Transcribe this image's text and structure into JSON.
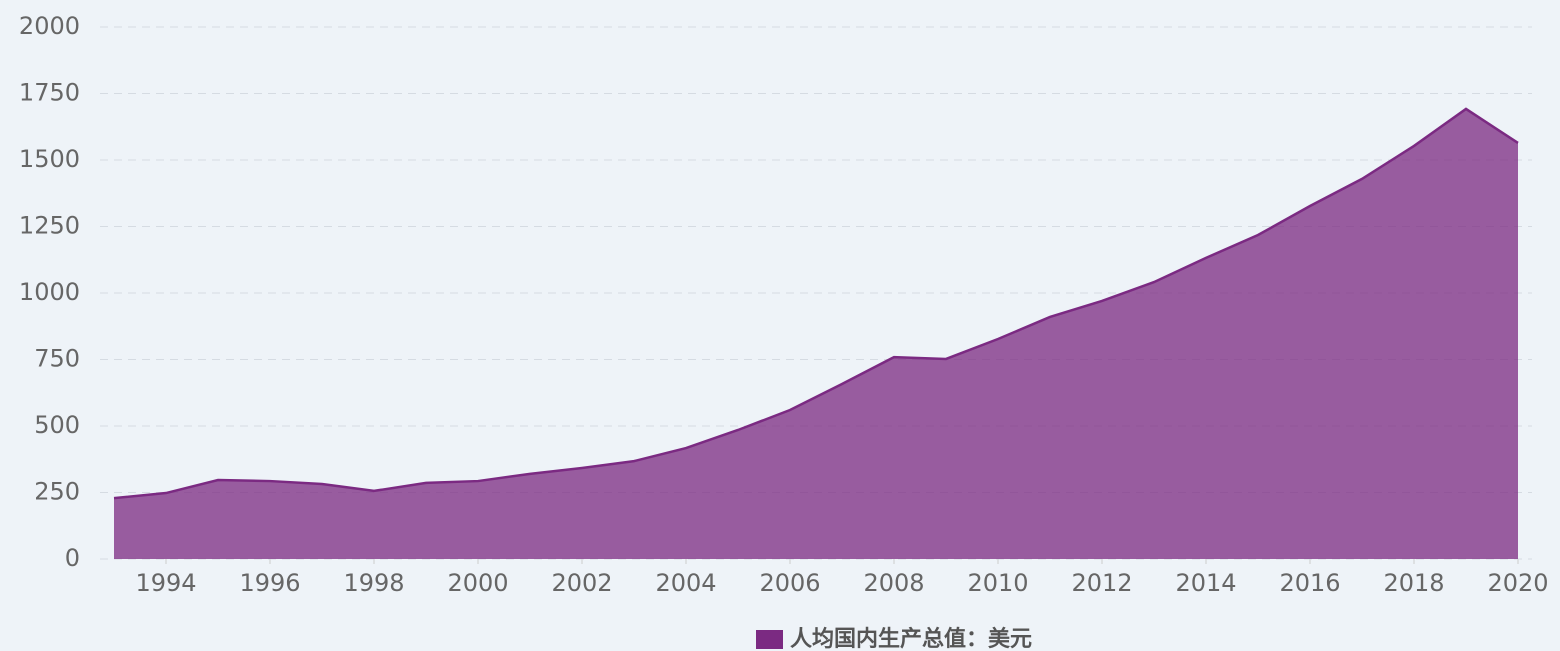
{
  "chart_data": {
    "type": "area",
    "legend_label": "人均国内生产总值：美元",
    "series": [
      {
        "name": "人均国内生产总值：美元",
        "color": "#7b2a82",
        "x": [
          1993,
          1994,
          1995,
          1996,
          1997,
          1998,
          1999,
          2000,
          2001,
          2002,
          2003,
          2004,
          2005,
          2006,
          2007,
          2008,
          2009,
          2010,
          2011,
          2012,
          2013,
          2014,
          2015,
          2016,
          2017,
          2018,
          2019,
          2020
        ],
        "values": [
          229,
          248,
          297,
          293,
          282,
          256,
          286,
          293,
          320,
          342,
          368,
          417,
          485,
          560,
          658,
          759,
          752,
          827,
          910,
          970,
          1041,
          1132,
          1218,
          1327,
          1429,
          1553,
          1692,
          1564
        ]
      }
    ],
    "xlim": [
      1993,
      2020
    ],
    "xticks": [
      1994,
      1996,
      1998,
      2000,
      2002,
      2004,
      2006,
      2008,
      2010,
      2012,
      2014,
      2016,
      2018,
      2020
    ],
    "ylim": [
      0,
      2000
    ],
    "yticks": [
      0,
      250,
      500,
      750,
      1000,
      1250,
      1500,
      1750,
      2000
    ],
    "grid": true
  }
}
